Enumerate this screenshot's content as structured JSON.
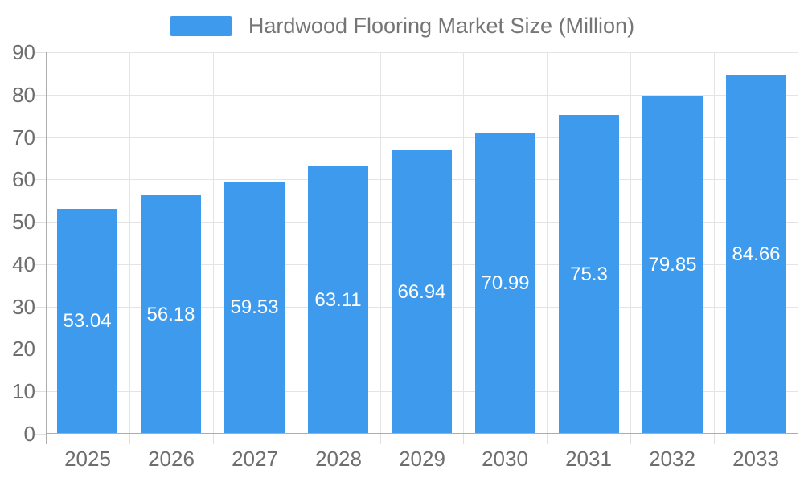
{
  "chart_data": {
    "type": "bar",
    "title": "Hardwood Flooring Market Size (Million)",
    "series_name": "Hardwood Flooring Market Size (Million)",
    "categories": [
      "2025",
      "2026",
      "2027",
      "2028",
      "2029",
      "2030",
      "2031",
      "2032",
      "2033"
    ],
    "values": [
      53.04,
      56.18,
      59.53,
      63.11,
      66.94,
      70.99,
      75.3,
      79.85,
      84.66
    ],
    "value_labels": [
      "53.04",
      "56.18",
      "59.53",
      "63.11",
      "66.94",
      "70.99",
      "75.3",
      "79.85",
      "84.66"
    ],
    "xlabel": "",
    "ylabel": "",
    "ylim": [
      0,
      90
    ],
    "y_tick_step": 10,
    "y_tick_labels": [
      "0",
      "10",
      "20",
      "30",
      "40",
      "50",
      "60",
      "70",
      "80",
      "90"
    ],
    "grid": true,
    "legend_position": "top",
    "value_label_position": "inside-middle"
  },
  "colors": {
    "bar": "#3E9AEC",
    "gridline": "#E4E4E4",
    "axis_line": "#ACACAC",
    "tick_light": "#E0E0E0",
    "axis_label": "#6E6E6E",
    "legend_text": "#757575",
    "value_label": "#FFFFFF",
    "background": "#FFFFFF"
  }
}
